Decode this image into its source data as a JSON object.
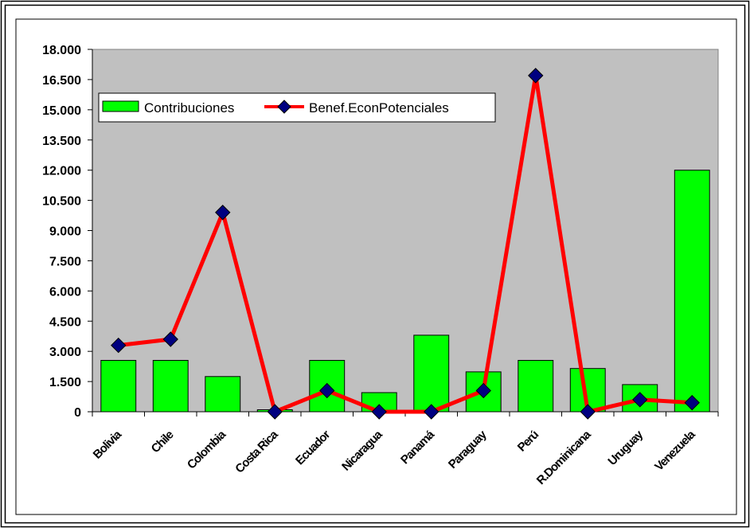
{
  "chart_data": {
    "type": "bar",
    "categories": [
      "Bolivia",
      "Chile",
      "Colombia",
      "Costa Rica",
      "Ecuador",
      "Nicaragua",
      "Panamá",
      "Paraguay",
      "Perú",
      "R.Dominicana",
      "Uruguay",
      "Venezuela"
    ],
    "series": [
      {
        "name": "Contribuciones",
        "type": "bar",
        "color": "#00ff00",
        "values": [
          2550,
          2550,
          1750,
          100,
          2550,
          950,
          3800,
          1980,
          2550,
          2150,
          1350,
          12000
        ]
      },
      {
        "name": "Benef.EconPotenciales",
        "type": "line",
        "color": "#ff0000",
        "marker_color": "#000080",
        "values": [
          3300,
          3600,
          9900,
          0,
          1050,
          0,
          0,
          1050,
          16700,
          0,
          600,
          450
        ]
      }
    ],
    "y_ticks": [
      "0",
      "1.500",
      "3.000",
      "4.500",
      "6.000",
      "7.500",
      "9.000",
      "10.500",
      "12.000",
      "13.500",
      "15.000",
      "16.500",
      "18.000"
    ],
    "ylim": [
      0,
      18000
    ],
    "title": "",
    "xlabel": "",
    "ylabel": "",
    "grid": false,
    "legend": "top-left",
    "plot_background": "#c0c0c0"
  }
}
